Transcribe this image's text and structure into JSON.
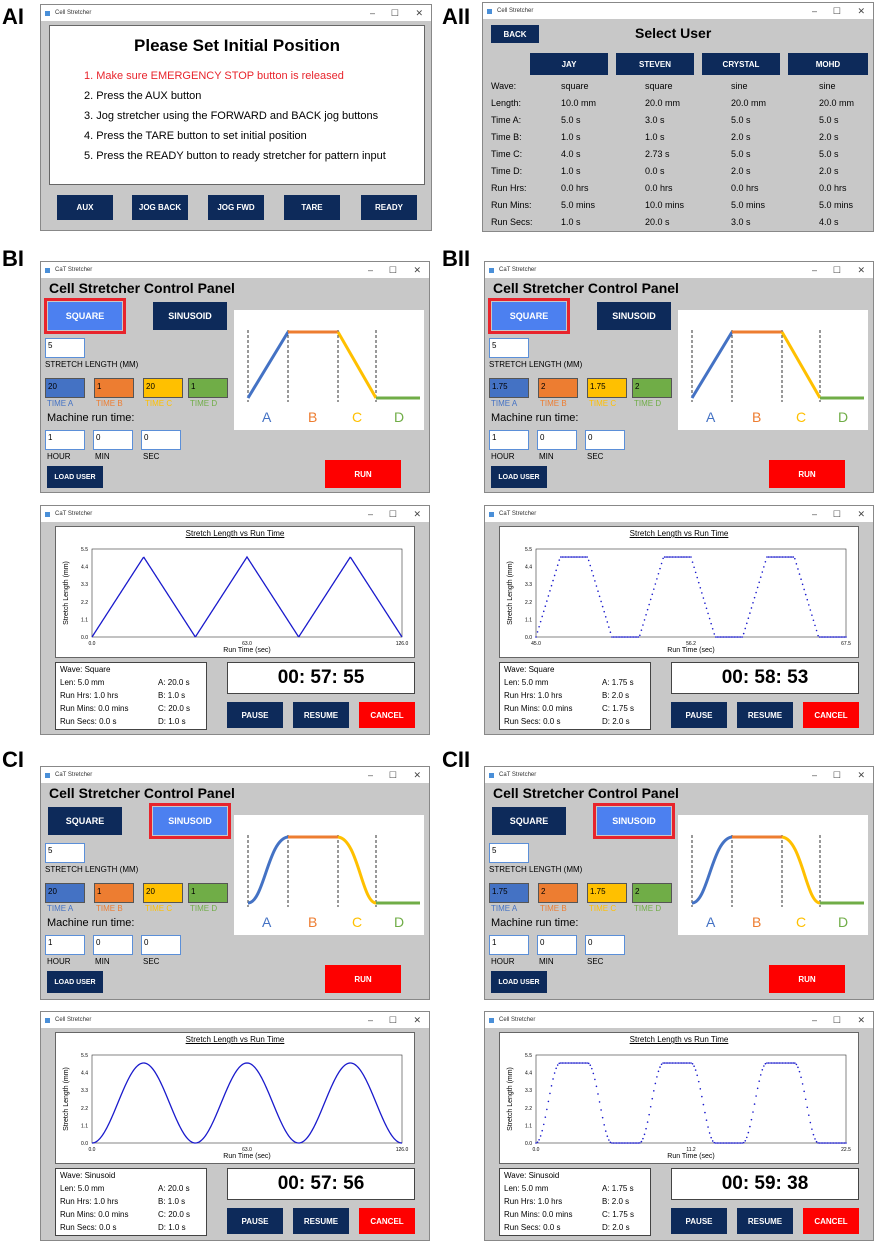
{
  "panel_labels": [
    "AI",
    "AII",
    "BI",
    "BII",
    "CI",
    "CII"
  ],
  "app_title_stretcher": "CaT Stretcher",
  "app_title_cell": "Cell Stretcher",
  "app_title_cat_stretcher": "CaT Stretcher",
  "control_panel_title": "Cell Stretcher Control Panel",
  "ai": {
    "heading": "Please Set Initial Position",
    "steps": [
      "1. Make sure EMERGENCY STOP button is released",
      "2. Press the AUX button",
      "3. Jog stretcher using the FORWARD and BACK jog buttons",
      "4. Press the TARE button to set initial position",
      "5. Press the READY button to ready stretcher for pattern input"
    ],
    "buttons": [
      "AUX",
      "JOG BACK",
      "JOG FWD",
      "TARE",
      "READY"
    ]
  },
  "aii": {
    "back": "BACK",
    "heading": "Select User",
    "users": [
      "JAY",
      "STEVEN",
      "CRYSTAL",
      "MOHD"
    ],
    "row_labels": [
      "Wave:",
      "Length:",
      "Time A:",
      "Time B:",
      "Time C:",
      "Time D:",
      "Run Hrs:",
      "Run Mins:",
      "Run Secs:"
    ],
    "columns": [
      [
        "square",
        "10.0 mm",
        "5.0 s",
        "1.0 s",
        "4.0 s",
        "1.0 s",
        "0.0 hrs",
        "5.0 mins",
        "1.0 s"
      ],
      [
        "square",
        "20.0 mm",
        "3.0 s",
        "1.0 s",
        "2.73 s",
        "0.0 s",
        "0.0 hrs",
        "10.0 mins",
        "20.0 s"
      ],
      [
        "sine",
        "20.0 mm",
        "5.0 s",
        "2.0 s",
        "5.0 s",
        "2.0 s",
        "0.0 hrs",
        "5.0 mins",
        "3.0 s"
      ],
      [
        "sine",
        "20.0 mm",
        "5.0 s",
        "2.0 s",
        "5.0 s",
        "2.0 s",
        "0.0 hrs",
        "5.0 mins",
        "4.0 s"
      ]
    ]
  },
  "control": {
    "square": "SQUARE",
    "sinusoid": "SINUSOID",
    "stretch_length_label": "STRETCH LENGTH (MM)",
    "time_labels": [
      "TIME A",
      "TIME B",
      "TIME C",
      "TIME D"
    ],
    "run_time_label": "Machine run time:",
    "hms_labels": [
      "HOUR",
      "MIN",
      "SEC"
    ],
    "load_user": "LOAD USER",
    "run": "RUN",
    "phase_letters": [
      "A",
      "B",
      "C",
      "D"
    ]
  },
  "runner": {
    "plot_title": "Stretch Length vs Run Time",
    "ylabel": "Stretch Length (mm)",
    "xlabel": "Run Time (sec)",
    "yticks": [
      "5.5",
      "4.4",
      "3.3",
      "2.2",
      "1.1",
      "0.0"
    ],
    "pause": "PAUSE",
    "resume": "RESUME",
    "cancel": "CANCEL"
  },
  "bi": {
    "length": "5",
    "times": [
      "20",
      "1",
      "20",
      "1"
    ],
    "hms": [
      "1",
      "0",
      "0"
    ],
    "xticks": [
      "0.0",
      "63.0",
      "126.0"
    ],
    "info": {
      "wave": "Wave: Square",
      "len": "Len: 5.0 mm",
      "hrs": "Run Hrs: 1.0 hrs",
      "mins": "Run Mins: 0.0 mins",
      "secs": "Run Secs: 0.0 s",
      "a": "A: 20.0 s",
      "b": "B: 1.0 s",
      "c": "C: 20.0 s",
      "d": "D: 1.0 s"
    },
    "timer": "00:  57:  55"
  },
  "bii": {
    "length": "5",
    "times": [
      "1.75",
      "2",
      "1.75",
      "2"
    ],
    "hms": [
      "1",
      "0",
      "0"
    ],
    "xticks": [
      "45.0",
      "56.2",
      "67.5"
    ],
    "info": {
      "wave": "Wave: Square",
      "len": "Len: 5.0 mm",
      "hrs": "Run Hrs: 1.0 hrs",
      "mins": "Run Mins: 0.0 mins",
      "secs": "Run Secs: 0.0 s",
      "a": "A: 1.75 s",
      "b": "B: 2.0 s",
      "c": "C: 1.75 s",
      "d": "D: 2.0 s"
    },
    "timer": "00:  58:  53"
  },
  "ci": {
    "length": "5",
    "times": [
      "20",
      "1",
      "20",
      "1"
    ],
    "hms": [
      "1",
      "0",
      "0"
    ],
    "xticks": [
      "0.0",
      "63.0",
      "126.0"
    ],
    "info": {
      "wave": "Wave: Sinusoid",
      "len": "Len: 5.0 mm",
      "hrs": "Run Hrs: 1.0 hrs",
      "mins": "Run Mins: 0.0 mins",
      "secs": "Run Secs: 0.0 s",
      "a": "A: 20.0 s",
      "b": "B: 1.0 s",
      "c": "C: 20.0 s",
      "d": "D: 1.0 s"
    },
    "timer": "00:  57:  56"
  },
  "cii": {
    "length": "5",
    "times": [
      "1.75",
      "2",
      "1.75",
      "2"
    ],
    "hms": [
      "1",
      "0",
      "0"
    ],
    "xticks": [
      "0.0",
      "11.2",
      "22.5"
    ],
    "info": {
      "wave": "Wave: Sinusoid",
      "len": "Len: 5.0 mm",
      "hrs": "Run Hrs: 1.0 hrs",
      "mins": "Run Mins: 0.0 mins",
      "secs": "Run Secs: 0.0 s",
      "a": "A: 1.75 s",
      "b": "B: 2.0 s",
      "c": "C: 1.75 s",
      "d": "D: 2.0 s"
    },
    "timer": "00:  59:  38"
  },
  "colors": {
    "navy": "#0d2a5a",
    "red": "#fe0000",
    "selected": "#4c80f0",
    "blue": "#4472c4",
    "orange": "#ed7d31",
    "yellow": "#ffc000",
    "green": "#70ad47",
    "plot": "#1a1acc"
  }
}
